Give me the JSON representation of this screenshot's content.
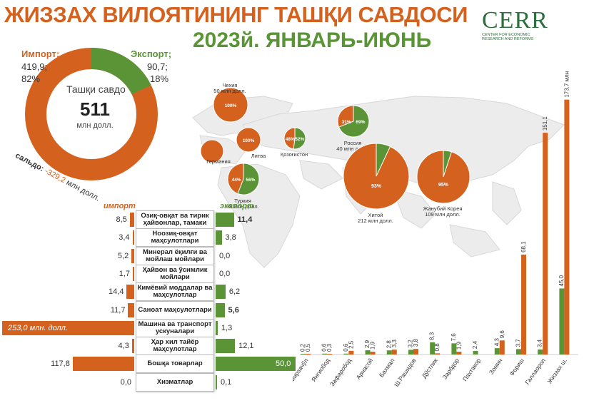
{
  "header": {
    "title_line1": "ЖИЗЗАХ ВИЛОЯТИНИНГ ТАШҚИ САВДОСИ",
    "title_line2": "2023й. ЯНВАРЬ-ИЮНЬ",
    "logo_text": "CERR",
    "logo_sub": "CENTER FOR ECONOMIC RESEARCH AND REFORMS"
  },
  "donut": {
    "center_label": "Ташқи савдо",
    "center_value": "511",
    "center_unit": "млн долл.",
    "import_label": "Импорт;",
    "import_value": "419,9;",
    "import_pct": "82%",
    "export_label": "Экспорт;",
    "export_value": "90,7;",
    "export_pct": "18%",
    "saldo_label": "сальдо:",
    "saldo_value": "-329,2",
    "saldo_unit": "млн долл.",
    "colors": {
      "import": "#d4621e",
      "export": "#5a9437"
    }
  },
  "map": {
    "countries": [
      {
        "name": "Чехия",
        "amount": "50 млн долл.",
        "import_pct": 100,
        "export_pct": 0,
        "import_text": "100%",
        "export_text": ""
      },
      {
        "name": "Германия",
        "amount": "",
        "import_pct": 100,
        "export_pct": 0,
        "import_text": "",
        "export_text": ""
      },
      {
        "name": "Литва",
        "amount": "",
        "import_pct": 100,
        "export_pct": 0,
        "import_text": "100%",
        "export_text": ""
      },
      {
        "name": "Туркия",
        "amount": "38 млн долл.",
        "import_pct": 44,
        "export_pct": 56,
        "import_text": "44%",
        "export_text": "56%"
      },
      {
        "name": "Қозоғистон",
        "amount": "",
        "import_pct": 48,
        "export_pct": 52,
        "import_text": "48%",
        "export_text": "52%"
      },
      {
        "name": "Россия",
        "amount": "40 млн долл.",
        "import_pct": 31,
        "export_pct": 69,
        "import_text": "31%",
        "export_text": "69%"
      },
      {
        "name": "Хитой",
        "amount": "212 млн долл.",
        "import_pct": 93,
        "export_pct": 7,
        "import_text": "93%",
        "export_text": ""
      },
      {
        "name": "Жанубий Корея",
        "amount": "109 млн долл.",
        "import_pct": 95,
        "export_pct": 5,
        "import_text": "95%",
        "export_text": ""
      }
    ]
  },
  "chart_data": [
    {
      "type": "pie",
      "title": "Ташқи савдо",
      "categories": [
        "Импорт",
        "Экспорт"
      ],
      "values": [
        419.9,
        90.7
      ]
    },
    {
      "type": "bar",
      "orientation": "horizontal",
      "series_labels": {
        "import": "импорт",
        "export": "экспорт"
      },
      "categories": [
        "Озиқ-овқат ва тирик ҳайвонлар, тамаки",
        "Ноозиқ-овқат маҳсулотлари",
        "Минерал ёқилғи ва мойлаш мойлари",
        "Ҳайвон ва ўсимлик мойлари",
        "Кимёвий моддалар ва маҳсулотлар",
        "Саноат маҳсулотлари",
        "Машина ва транспорт ускуналари",
        "Ҳар хил тайёр маҳсулотлар",
        "Бошқа товарлар",
        "Хизматлар"
      ],
      "series": [
        {
          "name": "импорт",
          "values": [
            8.5,
            3.4,
            5.2,
            1.7,
            14.4,
            11.7,
            253.0,
            4.3,
            117.8,
            0.0
          ]
        },
        {
          "name": "экспорт",
          "values": [
            11.4,
            3.8,
            0.0,
            0.0,
            6.2,
            5.6,
            1.3,
            12.1,
            50.0,
            0.1
          ]
        }
      ],
      "import_labels": [
        "8,5",
        "3,4",
        "5,2",
        "1,7",
        "14,4",
        "11,7",
        "253,0 млн. долл.",
        "4,3",
        "117,8",
        "0,0"
      ],
      "export_labels": [
        "11,4",
        "3,8",
        "0,0",
        "0,0",
        "6,2",
        "5,6",
        "1,3",
        "12,1",
        "50,0",
        "0,1"
      ],
      "bold_export": [
        0,
        5
      ]
    },
    {
      "type": "bar",
      "orientation": "vertical",
      "categories": [
        "Мирзачўл",
        "Янгиобод",
        "Зафаробод",
        "Арнасой",
        "Бахмал",
        "Ш.Рашидов",
        "Дўстлик",
        "Зарбдор",
        "Пахтакор",
        "Зомин",
        "Фориш",
        "Галлаорол",
        "Жиззах ш."
      ],
      "series": [
        {
          "name": "импорт",
          "values": [
            0.5,
            0.3,
            2.5,
            1.9,
            3.3,
            3.8,
            0.8,
            1.9,
            0.0,
            9.6,
            68.1,
            151.1,
            173.7
          ]
        },
        {
          "name": "экспорт",
          "values": [
            0.2,
            0.6,
            0.6,
            2.9,
            2.8,
            3.2,
            8.3,
            7.6,
            2.4,
            4.3,
            3.7,
            3.4,
            45.0
          ]
        }
      ],
      "import_labels": [
        "0,5",
        "0,3",
        "2,5",
        "1,9",
        "3,3",
        "3,8",
        "0,8",
        "1,9",
        "",
        "9,6",
        "68,1",
        "151,1",
        "173,7 млн долл."
      ],
      "export_labels": [
        "0,2",
        "0,6",
        "0,6",
        "2,9",
        "2,8",
        "3,2",
        "8,3",
        "7,6",
        "2,4",
        "4,3",
        "3,7",
        "3,4",
        "45,0"
      ]
    }
  ]
}
